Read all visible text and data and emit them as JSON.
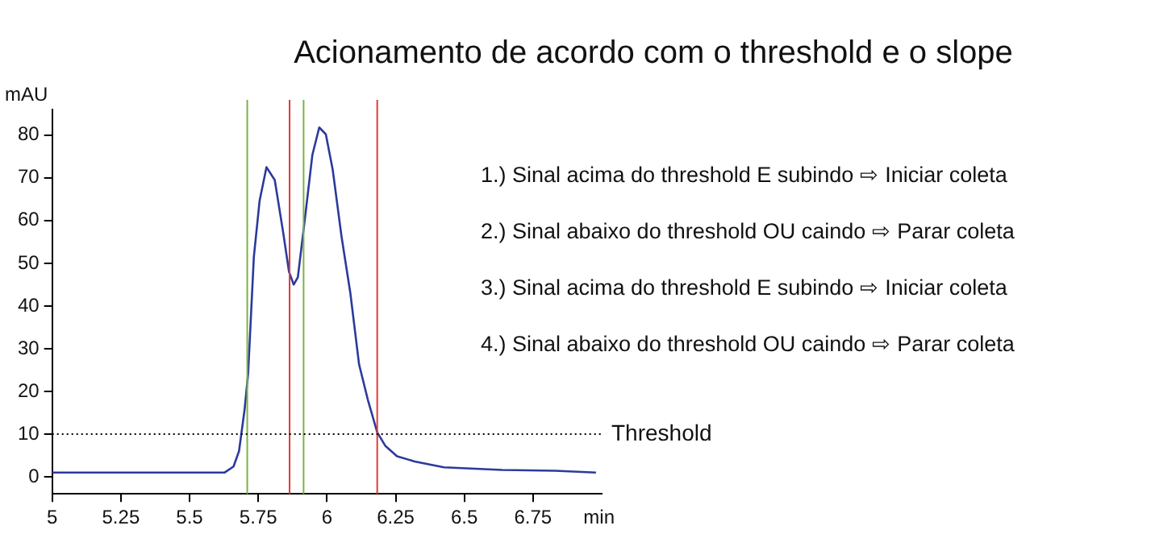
{
  "chart_data": {
    "type": "line",
    "title": "Acionamento de acordo com o threshold e o slope",
    "xlabel": "min",
    "ylabel": "mAU",
    "x": [
      5,
      5.628,
      5.66,
      5.68,
      5.7,
      5.713,
      5.734,
      5.755,
      5.78,
      5.81,
      5.84,
      5.862,
      5.879,
      5.894,
      5.919,
      5.947,
      5.972,
      5.996,
      6.021,
      6.053,
      6.085,
      6.117,
      6.149,
      6.183,
      6.213,
      6.255,
      6.319,
      6.426,
      6.638,
      6.83,
      6.979
    ],
    "series": [
      {
        "color": "#2b3a9c",
        "values": [
          1,
          1,
          2.4,
          6,
          15.6,
          24,
          51.5,
          64.7,
          72.5,
          69.5,
          57.5,
          48,
          45,
          46.7,
          60,
          75.4,
          81.8,
          80.2,
          71.9,
          56.3,
          43.1,
          26.3,
          18,
          10.4,
          7.2,
          4.8,
          3.6,
          2.2,
          1.6,
          1.4,
          1
        ]
      }
    ],
    "xlim": [
      5,
      7
    ],
    "xticks": [
      5,
      5.25,
      5.5,
      5.75,
      6,
      6.25,
      6.5,
      6.75
    ],
    "ylim": [
      -4,
      86
    ],
    "yticks": [
      0,
      10,
      20,
      30,
      40,
      50,
      60,
      70,
      80
    ],
    "grid": false,
    "legend": false,
    "marker": "none",
    "line_style": "solid",
    "ref_lines": [
      {
        "axis": "x",
        "value": 5.71,
        "color": "#7cb342"
      },
      {
        "axis": "x",
        "value": 5.864,
        "color": "#e53935"
      },
      {
        "axis": "x",
        "value": 5.915,
        "color": "#7cb342"
      },
      {
        "axis": "x",
        "value": 6.183,
        "color": "#e53935"
      },
      {
        "axis": "y",
        "value": 10,
        "label": "Threshold",
        "color": "#000000",
        "line_style": "dotted"
      }
    ],
    "annotations": [
      "1.) Sinal acima do threshold E subindo ⇨ Iniciar coleta",
      "2.) Sinal abaixo do threshold OU caindo ⇨ Parar coleta",
      "3.) Sinal acima do threshold E subindo ⇨ Iniciar coleta",
      "4.) Sinal abaixo do threshold OU caindo ⇨ Parar coleta"
    ]
  }
}
